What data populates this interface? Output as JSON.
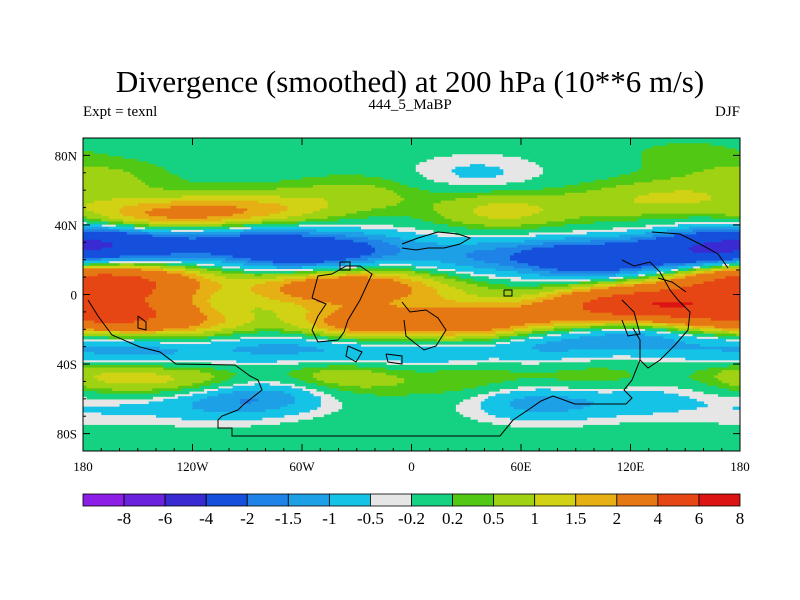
{
  "chart_data": {
    "type": "heatmap",
    "title": "Divergence (smoothed) at 200 hPa (10**6 m/s)",
    "left_label": "Expt = texnl",
    "center_label": "444_5_MaBP",
    "right_label": "DJF",
    "xlim": [
      -180,
      180
    ],
    "ylim": [
      -90,
      90
    ],
    "x_ticks": [
      -180,
      -120,
      -60,
      0,
      60,
      120,
      180
    ],
    "x_tick_labels": [
      "180",
      "120W",
      "60W",
      "0",
      "60E",
      "120E",
      "180"
    ],
    "y_ticks": [
      80,
      40,
      0,
      -40,
      -80
    ],
    "y_tick_labels": [
      "80N",
      "40N",
      "0",
      "40S",
      "80S"
    ],
    "colorbar": {
      "labels": [
        "-8",
        "-6",
        "-4",
        "-2",
        "-1.5",
        "-1",
        "-0.5",
        "-0.2",
        "0.2",
        "0.5",
        "1",
        "1.5",
        "2",
        "4",
        "6",
        "8"
      ],
      "colors": [
        "#8c1ee6",
        "#6a22dc",
        "#3a2ad2",
        "#1450dc",
        "#1e82e6",
        "#1ea0e6",
        "#14c3e6",
        "#e6e6e6",
        "#14d282",
        "#50c814",
        "#a0d214",
        "#d2d214",
        "#e6af14",
        "#e67814",
        "#e64614",
        "#dc1414"
      ]
    },
    "features": [
      {
        "lon": 150,
        "lat": 80,
        "value": 0.3
      },
      {
        "lon": -170,
        "lat": 67,
        "value": 0.6
      },
      {
        "lon": -150,
        "lat": 45,
        "value": 1.6
      },
      {
        "lon": -110,
        "lat": 46,
        "value": 1.6
      },
      {
        "lon": -75,
        "lat": 48,
        "value": 1.1
      },
      {
        "lon": -30,
        "lat": 57,
        "value": 0.7
      },
      {
        "lon": 50,
        "lat": 48,
        "value": 1.2
      },
      {
        "lon": 112,
        "lat": 53,
        "value": 0.6
      },
      {
        "lon": 150,
        "lat": 56,
        "value": 0.8
      },
      {
        "lon": 36,
        "lat": 70,
        "value": -0.6
      },
      {
        "lon": -168,
        "lat": 30,
        "value": -3.0
      },
      {
        "lon": -128,
        "lat": 27,
        "value": -1.4
      },
      {
        "lon": -88,
        "lat": 32,
        "value": -1.8
      },
      {
        "lon": -60,
        "lat": 23,
        "value": -2.5
      },
      {
        "lon": -25,
        "lat": 27,
        "value": -1.2
      },
      {
        "lon": 30,
        "lat": 22,
        "value": -1.1
      },
      {
        "lon": 75,
        "lat": 22,
        "value": -1.3
      },
      {
        "lon": 105,
        "lat": 20,
        "value": -2.5
      },
      {
        "lon": 155,
        "lat": 25,
        "value": -3.0
      },
      {
        "lon": -163,
        "lat": 5,
        "value": 3.0
      },
      {
        "lon": -135,
        "lat": 8,
        "value": 1.4
      },
      {
        "lon": -78,
        "lat": 2,
        "value": 0.8
      },
      {
        "lon": -45,
        "lat": 5,
        "value": 2.0
      },
      {
        "lon": -15,
        "lat": 5,
        "value": 1.3
      },
      {
        "lon": 15,
        "lat": 0,
        "value": 0.6
      },
      {
        "lon": 115,
        "lat": -5,
        "value": 2.6
      },
      {
        "lon": 145,
        "lat": -5,
        "value": 3.0
      },
      {
        "lon": 173,
        "lat": 8,
        "value": 2.4
      },
      {
        "lon": -155,
        "lat": -12,
        "value": 3.6
      },
      {
        "lon": -112,
        "lat": -18,
        "value": 1.3
      },
      {
        "lon": -30,
        "lat": -17,
        "value": 2.6
      },
      {
        "lon": 25,
        "lat": -17,
        "value": 2.2
      },
      {
        "lon": 55,
        "lat": -15,
        "value": 1.2
      },
      {
        "lon": 95,
        "lat": -10,
        "value": 1.8
      },
      {
        "lon": 165,
        "lat": -12,
        "value": 2.0
      },
      {
        "lon": -150,
        "lat": -33,
        "value": -1.3
      },
      {
        "lon": -95,
        "lat": -30,
        "value": -1.0
      },
      {
        "lon": -45,
        "lat": -30,
        "value": -1.2
      },
      {
        "lon": 10,
        "lat": -33,
        "value": -1.0
      },
      {
        "lon": 70,
        "lat": -28,
        "value": -1.2
      },
      {
        "lon": 120,
        "lat": -22,
        "value": -1.5
      },
      {
        "lon": 165,
        "lat": -30,
        "value": -0.8
      },
      {
        "lon": -165,
        "lat": -46,
        "value": 1.2
      },
      {
        "lon": -120,
        "lat": -50,
        "value": 1.0
      },
      {
        "lon": -40,
        "lat": -47,
        "value": 1.0
      },
      {
        "lon": 30,
        "lat": -48,
        "value": 0.6
      },
      {
        "lon": 100,
        "lat": -50,
        "value": 0.6
      },
      {
        "lon": -170,
        "lat": -65,
        "value": -0.5
      },
      {
        "lon": -110,
        "lat": -62,
        "value": -1.0
      },
      {
        "lon": -78,
        "lat": -58,
        "value": -1.2
      },
      {
        "lon": 70,
        "lat": -62,
        "value": -1.3
      },
      {
        "lon": 125,
        "lat": -60,
        "value": -0.8
      }
    ]
  }
}
